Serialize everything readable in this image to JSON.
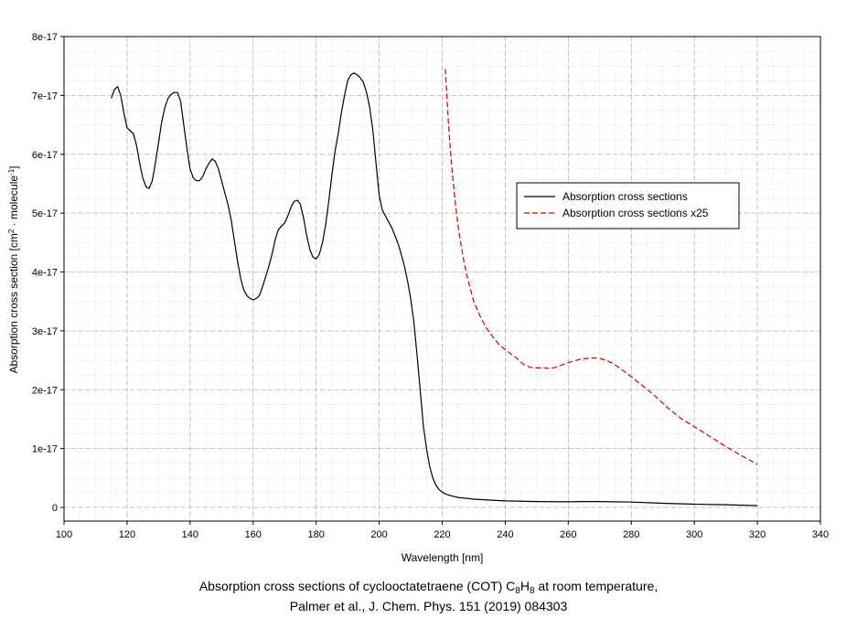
{
  "chart_data": {
    "type": "line",
    "xlabel": "Wavelength [nm]",
    "ylabel_parts": [
      "Absorption cross section [cm",
      "2",
      " · molecule",
      "-1",
      "]"
    ],
    "xlim": [
      100,
      340
    ],
    "ylim": [
      0,
      8e-17
    ],
    "x_ticks": [
      100,
      120,
      140,
      160,
      180,
      200,
      220,
      240,
      260,
      280,
      300,
      320,
      340
    ],
    "y_ticks": [
      {
        "value": 0,
        "label": "0"
      },
      {
        "value": 1e-17,
        "label": "1e-17"
      },
      {
        "value": 2e-17,
        "label": "2e-17"
      },
      {
        "value": 3e-17,
        "label": "3e-17"
      },
      {
        "value": 4e-17,
        "label": "4e-17"
      },
      {
        "value": 5e-17,
        "label": "5e-17"
      },
      {
        "value": 6e-17,
        "label": "6e-17"
      },
      {
        "value": 7e-17,
        "label": "7e-17"
      },
      {
        "value": 8e-17,
        "label": "8e-17"
      }
    ],
    "grid": true,
    "legend_position": "upper-right",
    "series": [
      {
        "name": "Absorption cross sections",
        "color": "#000000",
        "style": "solid",
        "x": [
          115,
          116,
          117,
          118,
          119,
          120,
          121,
          122,
          123,
          124,
          125,
          126,
          127,
          128,
          129,
          130,
          131,
          132,
          133,
          134,
          135,
          136,
          137,
          138,
          139,
          140,
          141,
          142,
          143,
          144,
          145,
          146,
          147,
          148,
          149,
          150,
          151,
          152,
          153,
          154,
          155,
          156,
          157,
          158,
          159,
          160,
          161,
          162,
          163,
          164,
          165,
          166,
          167,
          168,
          169,
          170,
          171,
          172,
          173,
          174,
          175,
          176,
          177,
          178,
          179,
          180,
          181,
          182,
          183,
          184,
          185,
          186,
          187,
          188,
          189,
          190,
          191,
          192,
          193,
          194,
          195,
          196,
          197,
          198,
          199,
          200,
          201,
          202,
          203,
          204,
          205,
          206,
          207,
          208,
          209,
          210,
          211,
          212,
          213,
          214,
          215,
          216,
          217,
          218,
          219,
          220,
          221,
          222,
          223,
          224,
          225,
          230,
          235,
          240,
          250,
          260,
          265,
          270,
          280,
          290,
          300,
          310,
          320
        ],
        "y": [
          6.95e-17,
          7.1e-17,
          7.15e-17,
          7e-17,
          6.7e-17,
          6.45e-17,
          6.4e-17,
          6.35e-17,
          6.15e-17,
          5.85e-17,
          5.6e-17,
          5.45e-17,
          5.42e-17,
          5.55e-17,
          5.85e-17,
          6.2e-17,
          6.55e-17,
          6.8e-17,
          6.95e-17,
          7.02e-17,
          7.05e-17,
          7.05e-17,
          6.9e-17,
          6.5e-17,
          6.1e-17,
          5.75e-17,
          5.6e-17,
          5.55e-17,
          5.55e-17,
          5.62e-17,
          5.75e-17,
          5.85e-17,
          5.92e-17,
          5.88e-17,
          5.75e-17,
          5.55e-17,
          5.35e-17,
          5.15e-17,
          4.9e-17,
          4.55e-17,
          4.2e-17,
          3.9e-17,
          3.7e-17,
          3.6e-17,
          3.55e-17,
          3.53e-17,
          3.55e-17,
          3.6e-17,
          3.75e-17,
          3.92e-17,
          4.1e-17,
          4.3e-17,
          4.55e-17,
          4.72e-17,
          4.78e-17,
          4.83e-17,
          4.95e-17,
          5.1e-17,
          5.2e-17,
          5.22e-17,
          5.15e-17,
          4.92e-17,
          4.62e-17,
          4.38e-17,
          4.25e-17,
          4.22e-17,
          4.3e-17,
          4.5e-17,
          4.8e-17,
          5.2e-17,
          5.65e-17,
          6.05e-17,
          6.35e-17,
          6.7e-17,
          7e-17,
          7.25e-17,
          7.35e-17,
          7.38e-17,
          7.35e-17,
          7.3e-17,
          7.22e-17,
          7.05e-17,
          6.8e-17,
          6.4e-17,
          5.85e-17,
          5.3e-17,
          5.05e-17,
          4.95e-17,
          4.85e-17,
          4.75e-17,
          4.62e-17,
          4.48e-17,
          4.3e-17,
          4.1e-17,
          3.85e-17,
          3.55e-17,
          3.15e-17,
          2.6e-17,
          2e-17,
          1.4e-17,
          1e-17,
          7e-18,
          5e-18,
          3.8e-18,
          3e-18,
          2.6e-18,
          2.3e-18,
          2.1e-18,
          1.95e-18,
          1.8e-18,
          1.7e-18,
          1.4e-18,
          1.25e-18,
          1.1e-18,
          1e-18,
          9.5e-19,
          1e-18,
          1e-18,
          9e-19,
          7e-19,
          5.5e-19,
          4.5e-19,
          3e-19
        ]
      },
      {
        "name": "Absorption cross sections x25",
        "color": "#cc0000",
        "style": "dashed",
        "x": [
          221,
          222,
          223,
          224,
          225,
          226,
          227,
          228,
          229,
          230,
          232,
          234,
          236,
          238,
          240,
          242,
          244,
          246,
          248,
          250,
          252,
          254,
          256,
          258,
          260,
          262,
          264,
          266,
          268,
          270,
          272,
          274,
          276,
          278,
          280,
          284,
          288,
          292,
          296,
          300,
          304,
          308,
          312,
          316,
          320
        ],
        "y": [
          7.45e-17,
          6.5e-17,
          5.8e-17,
          5.25e-17,
          4.8e-17,
          4.45e-17,
          4.15e-17,
          3.9e-17,
          3.7e-17,
          3.5e-17,
          3.25e-17,
          3.05e-17,
          2.9e-17,
          2.77e-17,
          2.68e-17,
          2.6e-17,
          2.52e-17,
          2.42e-17,
          2.38e-17,
          2.37e-17,
          2.37e-17,
          2.36e-17,
          2.38e-17,
          2.42e-17,
          2.46e-17,
          2.49e-17,
          2.52e-17,
          2.53e-17,
          2.54e-17,
          2.53e-17,
          2.5e-17,
          2.45e-17,
          2.38e-17,
          2.3e-17,
          2.22e-17,
          2.05e-17,
          1.87e-17,
          1.67e-17,
          1.5e-17,
          1.37e-17,
          1.24e-17,
          1.1e-17,
          9.7e-18,
          8.5e-18,
          7.3e-18
        ]
      }
    ]
  },
  "caption": {
    "line1_before": "Absorption cross sections of cyclooctatetraene (COT) C",
    "sub1": "8",
    "mid": "H",
    "sub2": "8",
    "line1_after": " at room temperature,",
    "line2": "Palmer et al., J. Chem. Phys. 151 (2019) 084303"
  }
}
